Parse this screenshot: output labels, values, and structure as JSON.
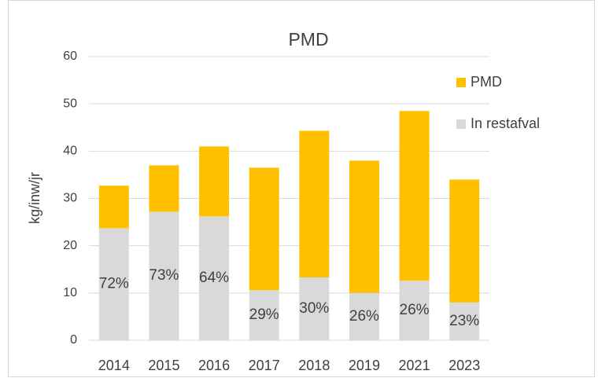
{
  "chart_data": {
    "type": "stacked_bar",
    "title": "PMD",
    "y_label": "kg/inw/jr",
    "categories": [
      "2014",
      "2015",
      "2016",
      "2017",
      "2018",
      "2019",
      "2021",
      "2023"
    ],
    "series": [
      {
        "name": "In restafval",
        "color": "#d9d9d9",
        "values": [
          23.7,
          27.2,
          26.2,
          10.6,
          13.3,
          10.0,
          12.6,
          8.0
        ]
      },
      {
        "name": "PMD",
        "color": "#ffc000",
        "values": [
          9.0,
          9.8,
          14.8,
          25.9,
          31.0,
          28.0,
          35.9,
          26.0
        ]
      }
    ],
    "annotations": [
      "72%",
      "73%",
      "64%",
      "29%",
      "30%",
      "26%",
      "26%",
      "23%"
    ],
    "ylim": [
      0,
      60
    ],
    "yticks": [
      0,
      10,
      20,
      30,
      40,
      50,
      60
    ],
    "grid": true,
    "legend": "right"
  }
}
